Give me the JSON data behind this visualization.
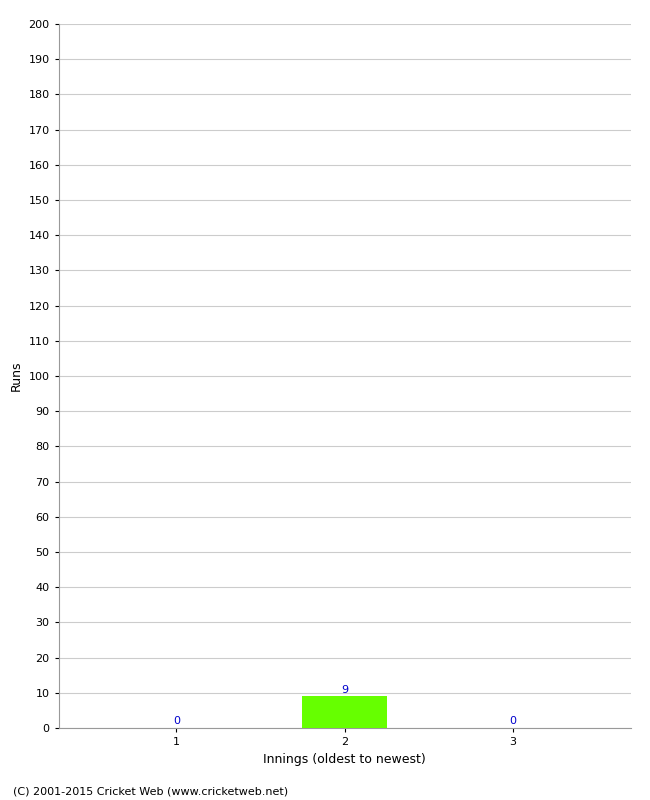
{
  "xlabel": "Innings (oldest to newest)",
  "ylabel": "Runs",
  "categories": [
    1,
    2,
    3
  ],
  "values": [
    0,
    9,
    0
  ],
  "bar_color": "#66ff00",
  "ylim": [
    0,
    200
  ],
  "yticks": [
    0,
    10,
    20,
    30,
    40,
    50,
    60,
    70,
    80,
    90,
    100,
    110,
    120,
    130,
    140,
    150,
    160,
    170,
    180,
    190,
    200
  ],
  "xticks": [
    1,
    2,
    3
  ],
  "background_color": "#ffffff",
  "grid_color": "#cccccc",
  "label_color": "#0000cc",
  "footer": "(C) 2001-2015 Cricket Web (www.cricketweb.net)",
  "bar_width": 0.5,
  "xlim": [
    0.3,
    3.7
  ],
  "tick_fontsize": 8,
  "label_fontsize": 9,
  "footer_fontsize": 8
}
